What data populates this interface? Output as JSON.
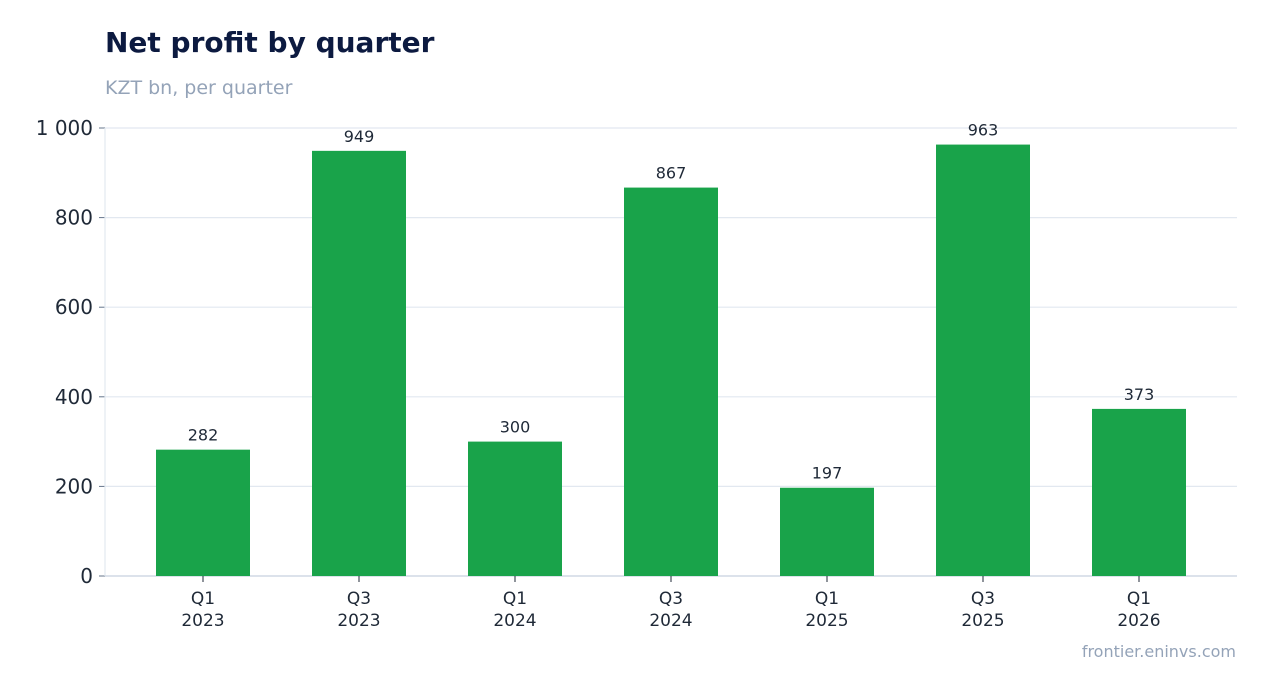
{
  "chart_data": {
    "type": "bar",
    "title": "Net profit by quarter",
    "subtitle": "KZT bn, per quarter",
    "categories": [
      [
        "Q1",
        "2023"
      ],
      [
        "Q3",
        "2023"
      ],
      [
        "Q1",
        "2024"
      ],
      [
        "Q3",
        "2024"
      ],
      [
        "Q1",
        "2025"
      ],
      [
        "Q3",
        "2025"
      ],
      [
        "Q1",
        "2026"
      ]
    ],
    "values": [
      282,
      949,
      300,
      867,
      197,
      963,
      373
    ],
    "value_labels": [
      "282",
      "949",
      "300",
      "867",
      "197",
      "963",
      "373"
    ],
    "ylim": [
      0,
      1000
    ],
    "yticks": [
      0,
      200,
      400,
      600,
      800,
      1000
    ],
    "ytick_labels": [
      "0",
      "200",
      "400",
      "600",
      "800",
      "1 000"
    ],
    "grid": true,
    "bar_color": "#19a34a",
    "source": "frontier.eninvs.com"
  }
}
